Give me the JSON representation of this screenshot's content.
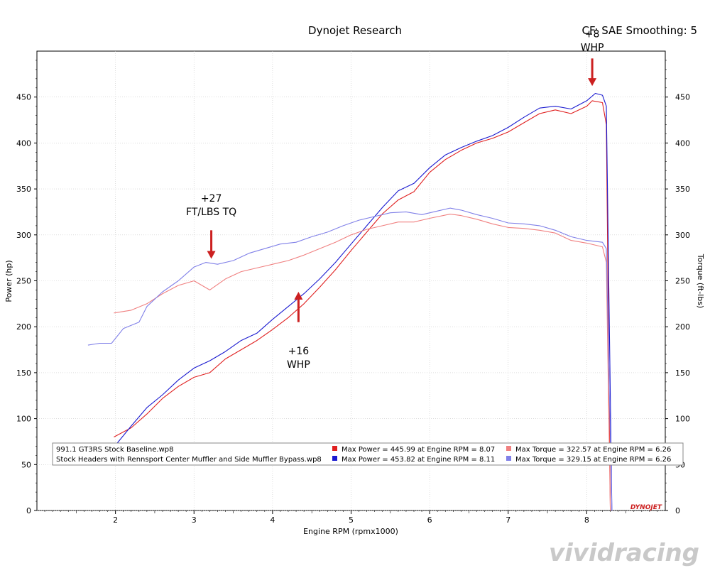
{
  "chart_data": {
    "type": "line",
    "title": "Dynojet Research",
    "header_right": "CF: SAE Smoothing: 5",
    "xlabel": "Engine RPM (rpmx1000)",
    "ylabel_left": "Power (hp)",
    "ylabel_right": "Torque (ft-lbs)",
    "xlim": [
      1.0,
      9.0
    ],
    "ylim": [
      0,
      500
    ],
    "x_ticks": [
      "2",
      "3",
      "4",
      "5",
      "6",
      "7",
      "8"
    ],
    "y_ticks_left": [
      "0",
      "50",
      "100",
      "150",
      "200",
      "250",
      "300",
      "350",
      "400",
      "450"
    ],
    "y_ticks_right": [
      "0",
      "50",
      "100",
      "150",
      "200",
      "250",
      "300",
      "350",
      "400",
      "450"
    ],
    "grid": true,
    "legend_rows": [
      {
        "run": "991.1 GT3RS Stock Baseline.wp8",
        "power": "Max Power = 445.99 at Engine RPM = 8.07",
        "torque": "Max Torque = 322.57 at Engine RPM = 6.26",
        "power_color": "#e02020",
        "torque_color": "#f08080"
      },
      {
        "run": "Stock Headers with Rennsport Center Muffler and Side Muffler Bypass.wp8",
        "power": "Max Power = 453.82 at Engine RPM = 8.11",
        "torque": "Max Torque = 329.15 at Engine RPM = 6.26",
        "power_color": "#1a1ad0",
        "torque_color": "#8080e8"
      }
    ],
    "series": [
      {
        "axis": "left",
        "color": "#e02020",
        "points": [
          [
            1.98,
            80
          ],
          [
            2.2,
            90
          ],
          [
            2.4,
            105
          ],
          [
            2.6,
            122
          ],
          [
            2.8,
            135
          ],
          [
            3.0,
            145
          ],
          [
            3.2,
            150
          ],
          [
            3.4,
            165
          ],
          [
            3.6,
            175
          ],
          [
            3.8,
            185
          ],
          [
            4.0,
            197
          ],
          [
            4.2,
            210
          ],
          [
            4.4,
            225
          ],
          [
            4.6,
            243
          ],
          [
            4.8,
            262
          ],
          [
            5.0,
            283
          ],
          [
            5.2,
            303
          ],
          [
            5.4,
            323
          ],
          [
            5.6,
            338
          ],
          [
            5.8,
            347
          ],
          [
            6.0,
            368
          ],
          [
            6.2,
            382
          ],
          [
            6.4,
            392
          ],
          [
            6.6,
            400
          ],
          [
            6.8,
            405
          ],
          [
            7.0,
            412
          ],
          [
            7.2,
            422
          ],
          [
            7.4,
            432
          ],
          [
            7.6,
            436
          ],
          [
            7.8,
            432
          ],
          [
            8.0,
            440
          ],
          [
            8.07,
            446
          ],
          [
            8.2,
            444
          ],
          [
            8.25,
            420
          ],
          [
            8.3,
            0
          ]
        ]
      },
      {
        "axis": "left",
        "color": "#1a1ad0",
        "points": [
          [
            2.0,
            71
          ],
          [
            2.2,
            92
          ],
          [
            2.4,
            112
          ],
          [
            2.6,
            126
          ],
          [
            2.8,
            142
          ],
          [
            3.0,
            155
          ],
          [
            3.2,
            163
          ],
          [
            3.4,
            173
          ],
          [
            3.6,
            185
          ],
          [
            3.8,
            193
          ],
          [
            4.0,
            208
          ],
          [
            4.2,
            222
          ],
          [
            4.4,
            236
          ],
          [
            4.6,
            252
          ],
          [
            4.8,
            270
          ],
          [
            5.0,
            290
          ],
          [
            5.2,
            310
          ],
          [
            5.4,
            330
          ],
          [
            5.6,
            348
          ],
          [
            5.8,
            356
          ],
          [
            6.0,
            373
          ],
          [
            6.2,
            387
          ],
          [
            6.4,
            395
          ],
          [
            6.6,
            402
          ],
          [
            6.8,
            408
          ],
          [
            7.0,
            417
          ],
          [
            7.2,
            428
          ],
          [
            7.4,
            438
          ],
          [
            7.6,
            440
          ],
          [
            7.8,
            437
          ],
          [
            8.0,
            446
          ],
          [
            8.11,
            454
          ],
          [
            8.2,
            452
          ],
          [
            8.25,
            440
          ],
          [
            8.32,
            0
          ]
        ]
      },
      {
        "axis": "right",
        "color": "#f08080",
        "points": [
          [
            1.98,
            215
          ],
          [
            2.2,
            218
          ],
          [
            2.4,
            225
          ],
          [
            2.6,
            236
          ],
          [
            2.8,
            245
          ],
          [
            3.0,
            250
          ],
          [
            3.2,
            240
          ],
          [
            3.4,
            252
          ],
          [
            3.6,
            260
          ],
          [
            3.8,
            264
          ],
          [
            4.0,
            268
          ],
          [
            4.2,
            272
          ],
          [
            4.4,
            278
          ],
          [
            4.6,
            285
          ],
          [
            4.8,
            292
          ],
          [
            5.0,
            300
          ],
          [
            5.2,
            306
          ],
          [
            5.4,
            310
          ],
          [
            5.6,
            314
          ],
          [
            5.8,
            314
          ],
          [
            6.0,
            318
          ],
          [
            6.26,
            322.57
          ],
          [
            6.4,
            321
          ],
          [
            6.6,
            317
          ],
          [
            6.8,
            312
          ],
          [
            7.0,
            308
          ],
          [
            7.2,
            307
          ],
          [
            7.4,
            305
          ],
          [
            7.6,
            302
          ],
          [
            7.8,
            294
          ],
          [
            8.0,
            291
          ],
          [
            8.2,
            287
          ],
          [
            8.25,
            270
          ],
          [
            8.3,
            0
          ]
        ]
      },
      {
        "axis": "right",
        "color": "#8080e8",
        "points": [
          [
            1.65,
            180
          ],
          [
            1.8,
            182
          ],
          [
            1.95,
            182
          ],
          [
            2.1,
            198
          ],
          [
            2.3,
            205
          ],
          [
            2.4,
            222
          ],
          [
            2.6,
            238
          ],
          [
            2.8,
            250
          ],
          [
            3.0,
            265
          ],
          [
            3.15,
            270
          ],
          [
            3.3,
            268
          ],
          [
            3.5,
            272
          ],
          [
            3.7,
            280
          ],
          [
            3.9,
            285
          ],
          [
            4.1,
            290
          ],
          [
            4.3,
            292
          ],
          [
            4.5,
            298
          ],
          [
            4.7,
            303
          ],
          [
            4.9,
            310
          ],
          [
            5.1,
            316
          ],
          [
            5.3,
            320
          ],
          [
            5.5,
            324
          ],
          [
            5.7,
            325
          ],
          [
            5.9,
            322
          ],
          [
            6.1,
            326
          ],
          [
            6.26,
            329.15
          ],
          [
            6.4,
            327
          ],
          [
            6.6,
            322
          ],
          [
            6.8,
            318
          ],
          [
            7.0,
            313
          ],
          [
            7.2,
            312
          ],
          [
            7.4,
            310
          ],
          [
            7.6,
            305
          ],
          [
            7.8,
            298
          ],
          [
            8.0,
            294
          ],
          [
            8.2,
            292
          ],
          [
            8.25,
            285
          ],
          [
            8.32,
            0
          ]
        ]
      }
    ],
    "annotations": [
      {
        "lines": [
          "+27",
          "FT/LBS TQ"
        ],
        "arrow_x": 3.22,
        "arrow_from": 305,
        "arrow_to": 274,
        "text_x": 3.22,
        "text_y": 336
      },
      {
        "lines": [
          "+16",
          "WHP"
        ],
        "arrow_x": 4.33,
        "arrow_from": 205,
        "arrow_to": 238,
        "text_x": 4.33,
        "text_y": 170
      },
      {
        "lines": [
          "+8",
          "WHP"
        ],
        "arrow_x": 8.07,
        "arrow_from": 492,
        "arrow_to": 462,
        "text_x": 8.07,
        "text_y": 515
      }
    ],
    "logo_text": "DYNOJET"
  },
  "watermark": "vividracing",
  "colors": {
    "arrow": "#cc2020",
    "grid": "#c8c8c8",
    "axis": "#000000"
  }
}
